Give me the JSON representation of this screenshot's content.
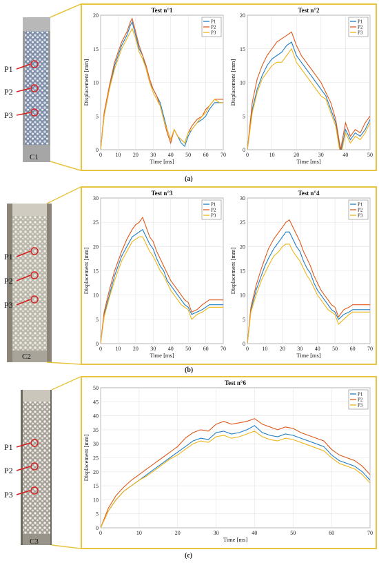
{
  "captions": [
    "(a)",
    "(b)",
    "(c)"
  ],
  "colors": {
    "P1": "#1f7dc4",
    "P2": "#e0581a",
    "P3": "#efb41a",
    "frame": "#e8c440",
    "marker": "#d62020"
  },
  "specimens": [
    {
      "name": "C1",
      "points": [
        "P1",
        "P2",
        "P3"
      ]
    },
    {
      "name": "C2",
      "points": [
        "P1",
        "P2",
        "P3"
      ]
    },
    {
      "name": "C3",
      "points": [
        "P1",
        "P2",
        "P3"
      ]
    }
  ],
  "chart_data": [
    {
      "type": "line",
      "title": "Test n°1",
      "xlabel": "Time [ms]",
      "ylabel": "Displacement [mm]",
      "xlim": [
        0,
        70
      ],
      "ylim": [
        0,
        20
      ],
      "xticks": [
        0,
        10,
        20,
        30,
        40,
        50,
        60,
        70
      ],
      "yticks": [
        0,
        5,
        10,
        15,
        20
      ],
      "legend": "top-right",
      "grid": true,
      "x": [
        0,
        2,
        5,
        8,
        10,
        12,
        15,
        17,
        18,
        20,
        22,
        24,
        26,
        28,
        30,
        32,
        34,
        36,
        38,
        40,
        42,
        44,
        46,
        48,
        50,
        52,
        55,
        58,
        60,
        62,
        65,
        68,
        70
      ],
      "series": [
        {
          "name": "P1",
          "values": [
            0,
            5,
            9,
            12.5,
            14,
            15.5,
            17,
            18.5,
            19,
            17,
            15,
            14,
            12,
            10,
            9,
            8,
            7,
            5,
            3,
            1.5,
            3,
            2,
            1,
            0.5,
            2,
            3,
            4,
            4.5,
            5,
            6,
            7,
            7,
            7
          ]
        },
        {
          "name": "P2",
          "values": [
            0,
            5.5,
            9.5,
            13,
            14.5,
            16,
            17.5,
            19,
            19.5,
            17.5,
            15.5,
            14,
            12.5,
            10.5,
            9,
            8,
            6.5,
            4.5,
            2.5,
            1,
            3,
            2,
            1.5,
            1,
            2.5,
            3.5,
            4.5,
            5,
            6,
            6.5,
            7.5,
            7.5,
            7.5
          ]
        },
        {
          "name": "P3",
          "values": [
            0,
            5,
            9,
            12,
            13.5,
            15,
            16.5,
            17.5,
            18,
            16.5,
            14.5,
            13.5,
            12,
            10,
            8.5,
            7.5,
            6.5,
            4.5,
            3,
            1.5,
            3,
            2,
            1.5,
            1,
            2.5,
            3,
            4,
            5,
            5.5,
            6.5,
            7.5,
            7,
            7
          ]
        }
      ]
    },
    {
      "type": "line",
      "title": "Test n°2",
      "xlabel": "Time [ms]",
      "ylabel": "Displacement [mm]",
      "xlim": [
        0,
        50
      ],
      "ylim": [
        0,
        20
      ],
      "xticks": [
        0,
        10,
        20,
        30,
        40,
        50
      ],
      "yticks": [
        0,
        5,
        10,
        15,
        20
      ],
      "legend": "top-right",
      "grid": true,
      "x": [
        0,
        2,
        4,
        6,
        8,
        10,
        12,
        14,
        16,
        18,
        20,
        22,
        24,
        26,
        28,
        30,
        32,
        34,
        36,
        38,
        40,
        42,
        44,
        46,
        48,
        50
      ],
      "series": [
        {
          "name": "P1",
          "values": [
            0,
            6,
            9,
            11,
            12.5,
            13.5,
            14,
            14.5,
            15.5,
            16,
            14,
            13,
            12,
            11,
            10,
            9,
            8,
            6,
            4,
            -0.5,
            3,
            1.5,
            2.5,
            2,
            3,
            4.5
          ]
        },
        {
          "name": "P2",
          "values": [
            0,
            7,
            10.5,
            12.5,
            14,
            15,
            16,
            16.5,
            17,
            17.5,
            15.5,
            14,
            13,
            12,
            11,
            10,
            8.5,
            7,
            4.5,
            0,
            4,
            2,
            3,
            2.5,
            4,
            5
          ]
        },
        {
          "name": "P3",
          "values": [
            0,
            5.5,
            8.5,
            10.5,
            11.5,
            12.5,
            13,
            13,
            14,
            15,
            13,
            12,
            11,
            10,
            9,
            8,
            7.5,
            5.5,
            3.5,
            -1,
            2.5,
            1,
            2,
            1.5,
            2.5,
            4
          ]
        }
      ]
    },
    {
      "type": "line",
      "title": "Test n°3",
      "xlabel": "Time [ms]",
      "ylabel": "Displacement [mm]",
      "xlim": [
        0,
        70
      ],
      "ylim": [
        0,
        30
      ],
      "xticks": [
        0,
        10,
        20,
        30,
        40,
        50,
        60,
        70
      ],
      "yticks": [
        0,
        5,
        10,
        15,
        20,
        25,
        30
      ],
      "legend": "top-right",
      "grid": true,
      "x": [
        0,
        2,
        5,
        8,
        10,
        12,
        15,
        18,
        20,
        22,
        24,
        26,
        28,
        30,
        32,
        34,
        36,
        38,
        40,
        42,
        44,
        46,
        48,
        50,
        52,
        55,
        58,
        60,
        62,
        65,
        68,
        70
      ],
      "series": [
        {
          "name": "P1",
          "values": [
            0,
            6,
            10,
            14,
            16,
            18,
            20,
            22,
            22.5,
            23,
            23.5,
            22,
            20.5,
            19.5,
            17.5,
            16,
            15,
            13,
            12,
            11,
            10,
            9,
            8,
            7.5,
            6,
            6.5,
            7,
            7.5,
            8,
            8,
            8,
            8
          ]
        },
        {
          "name": "P2",
          "values": [
            0,
            6.5,
            11,
            15,
            17,
            19,
            21.5,
            23.5,
            24.5,
            25,
            26,
            24,
            22,
            21,
            19,
            17.5,
            16,
            14.5,
            13,
            12,
            11,
            10,
            9,
            8.5,
            6.5,
            7,
            8,
            8.5,
            9,
            9,
            9,
            9
          ]
        },
        {
          "name": "P3",
          "values": [
            0,
            5.5,
            9.5,
            13,
            15,
            17,
            19,
            21,
            21.5,
            22,
            22,
            20.5,
            19,
            18,
            16.5,
            15,
            14,
            12.5,
            11,
            10,
            9,
            8,
            7.5,
            7,
            5,
            6,
            6.5,
            7,
            7.5,
            7.5,
            7.5,
            7.5
          ]
        }
      ]
    },
    {
      "type": "line",
      "title": "Test n°4",
      "xlabel": "Time [ms]",
      "ylabel": "Displacement [mm]",
      "xlim": [
        0,
        70
      ],
      "ylim": [
        0,
        30
      ],
      "xticks": [
        0,
        10,
        20,
        30,
        40,
        50,
        60,
        70
      ],
      "yticks": [
        0,
        5,
        10,
        15,
        20,
        25,
        30
      ],
      "legend": "top-right",
      "grid": true,
      "x": [
        0,
        2,
        5,
        8,
        10,
        12,
        15,
        18,
        20,
        22,
        24,
        26,
        28,
        30,
        32,
        34,
        36,
        38,
        40,
        42,
        44,
        46,
        48,
        50,
        52,
        55,
        58,
        60,
        62,
        65,
        68,
        70
      ],
      "series": [
        {
          "name": "P1",
          "values": [
            0,
            7,
            11,
            14,
            16,
            17.5,
            19.5,
            21,
            22,
            23,
            23,
            21.5,
            20,
            19,
            17,
            15.5,
            14.5,
            12.5,
            11,
            10,
            9,
            8,
            7,
            6.5,
            5,
            6,
            6.5,
            7,
            7,
            7,
            7,
            7
          ]
        },
        {
          "name": "P2",
          "values": [
            0,
            7.5,
            12,
            15.5,
            17.5,
            19.5,
            21.5,
            23,
            24,
            25,
            25.5,
            24,
            22.5,
            21,
            19,
            17.5,
            16,
            14,
            12.5,
            11,
            10,
            9,
            8,
            7.5,
            5.5,
            7,
            7.5,
            8,
            8,
            8,
            8,
            8
          ]
        },
        {
          "name": "P3",
          "values": [
            0,
            6.5,
            10,
            13,
            14.5,
            16,
            18,
            19,
            20,
            20.5,
            20.5,
            19,
            18,
            17,
            15.5,
            14,
            13,
            11.5,
            10,
            9,
            8,
            7,
            6.5,
            6,
            4,
            5,
            6,
            6.5,
            6.5,
            6.5,
            6.5,
            6.5
          ]
        }
      ]
    },
    {
      "type": "line",
      "title": "Test n°6",
      "xlabel": "Time [ms]",
      "ylabel": "Displacement [mm]",
      "xlim": [
        0,
        70
      ],
      "ylim": [
        0,
        50
      ],
      "xticks": [
        0,
        10,
        20,
        30,
        40,
        50,
        60,
        70
      ],
      "yticks": [
        0,
        5,
        10,
        15,
        20,
        25,
        30,
        35,
        40,
        45,
        50
      ],
      "legend": "top-right",
      "grid": true,
      "x": [
        0,
        2,
        4,
        6,
        8,
        10,
        12,
        14,
        16,
        18,
        20,
        22,
        24,
        26,
        28,
        30,
        32,
        34,
        36,
        38,
        40,
        42,
        44,
        46,
        48,
        50,
        52,
        54,
        56,
        58,
        60,
        62,
        64,
        66,
        68,
        70
      ],
      "series": [
        {
          "name": "P1",
          "values": [
            0,
            6,
            10,
            13,
            15,
            17,
            19,
            21,
            23,
            25,
            27,
            29,
            31,
            32,
            31.5,
            34,
            34.5,
            33.5,
            34,
            35,
            36.5,
            34,
            33,
            32.5,
            33.5,
            33,
            32,
            31,
            30,
            29,
            26,
            24,
            23,
            22,
            20,
            17
          ]
        },
        {
          "name": "P2",
          "values": [
            0,
            7,
            11.5,
            14.5,
            17,
            19,
            21,
            23,
            25,
            27,
            29,
            32,
            34,
            35,
            34.5,
            37,
            38,
            37,
            37.5,
            38,
            39,
            37,
            36,
            35,
            36,
            35.5,
            34,
            33,
            32,
            31,
            28,
            26,
            25,
            24,
            22,
            19
          ]
        },
        {
          "name": "P3",
          "values": [
            0,
            6,
            10,
            13,
            15,
            17,
            18.5,
            20.5,
            22.5,
            24.5,
            26,
            28,
            30,
            31,
            30.5,
            32.5,
            33,
            32,
            32.5,
            33.5,
            34.5,
            32.5,
            31.5,
            31,
            32,
            31.5,
            30.5,
            29.5,
            28.5,
            27.5,
            25,
            23,
            22,
            21,
            19,
            16
          ]
        }
      ]
    }
  ]
}
